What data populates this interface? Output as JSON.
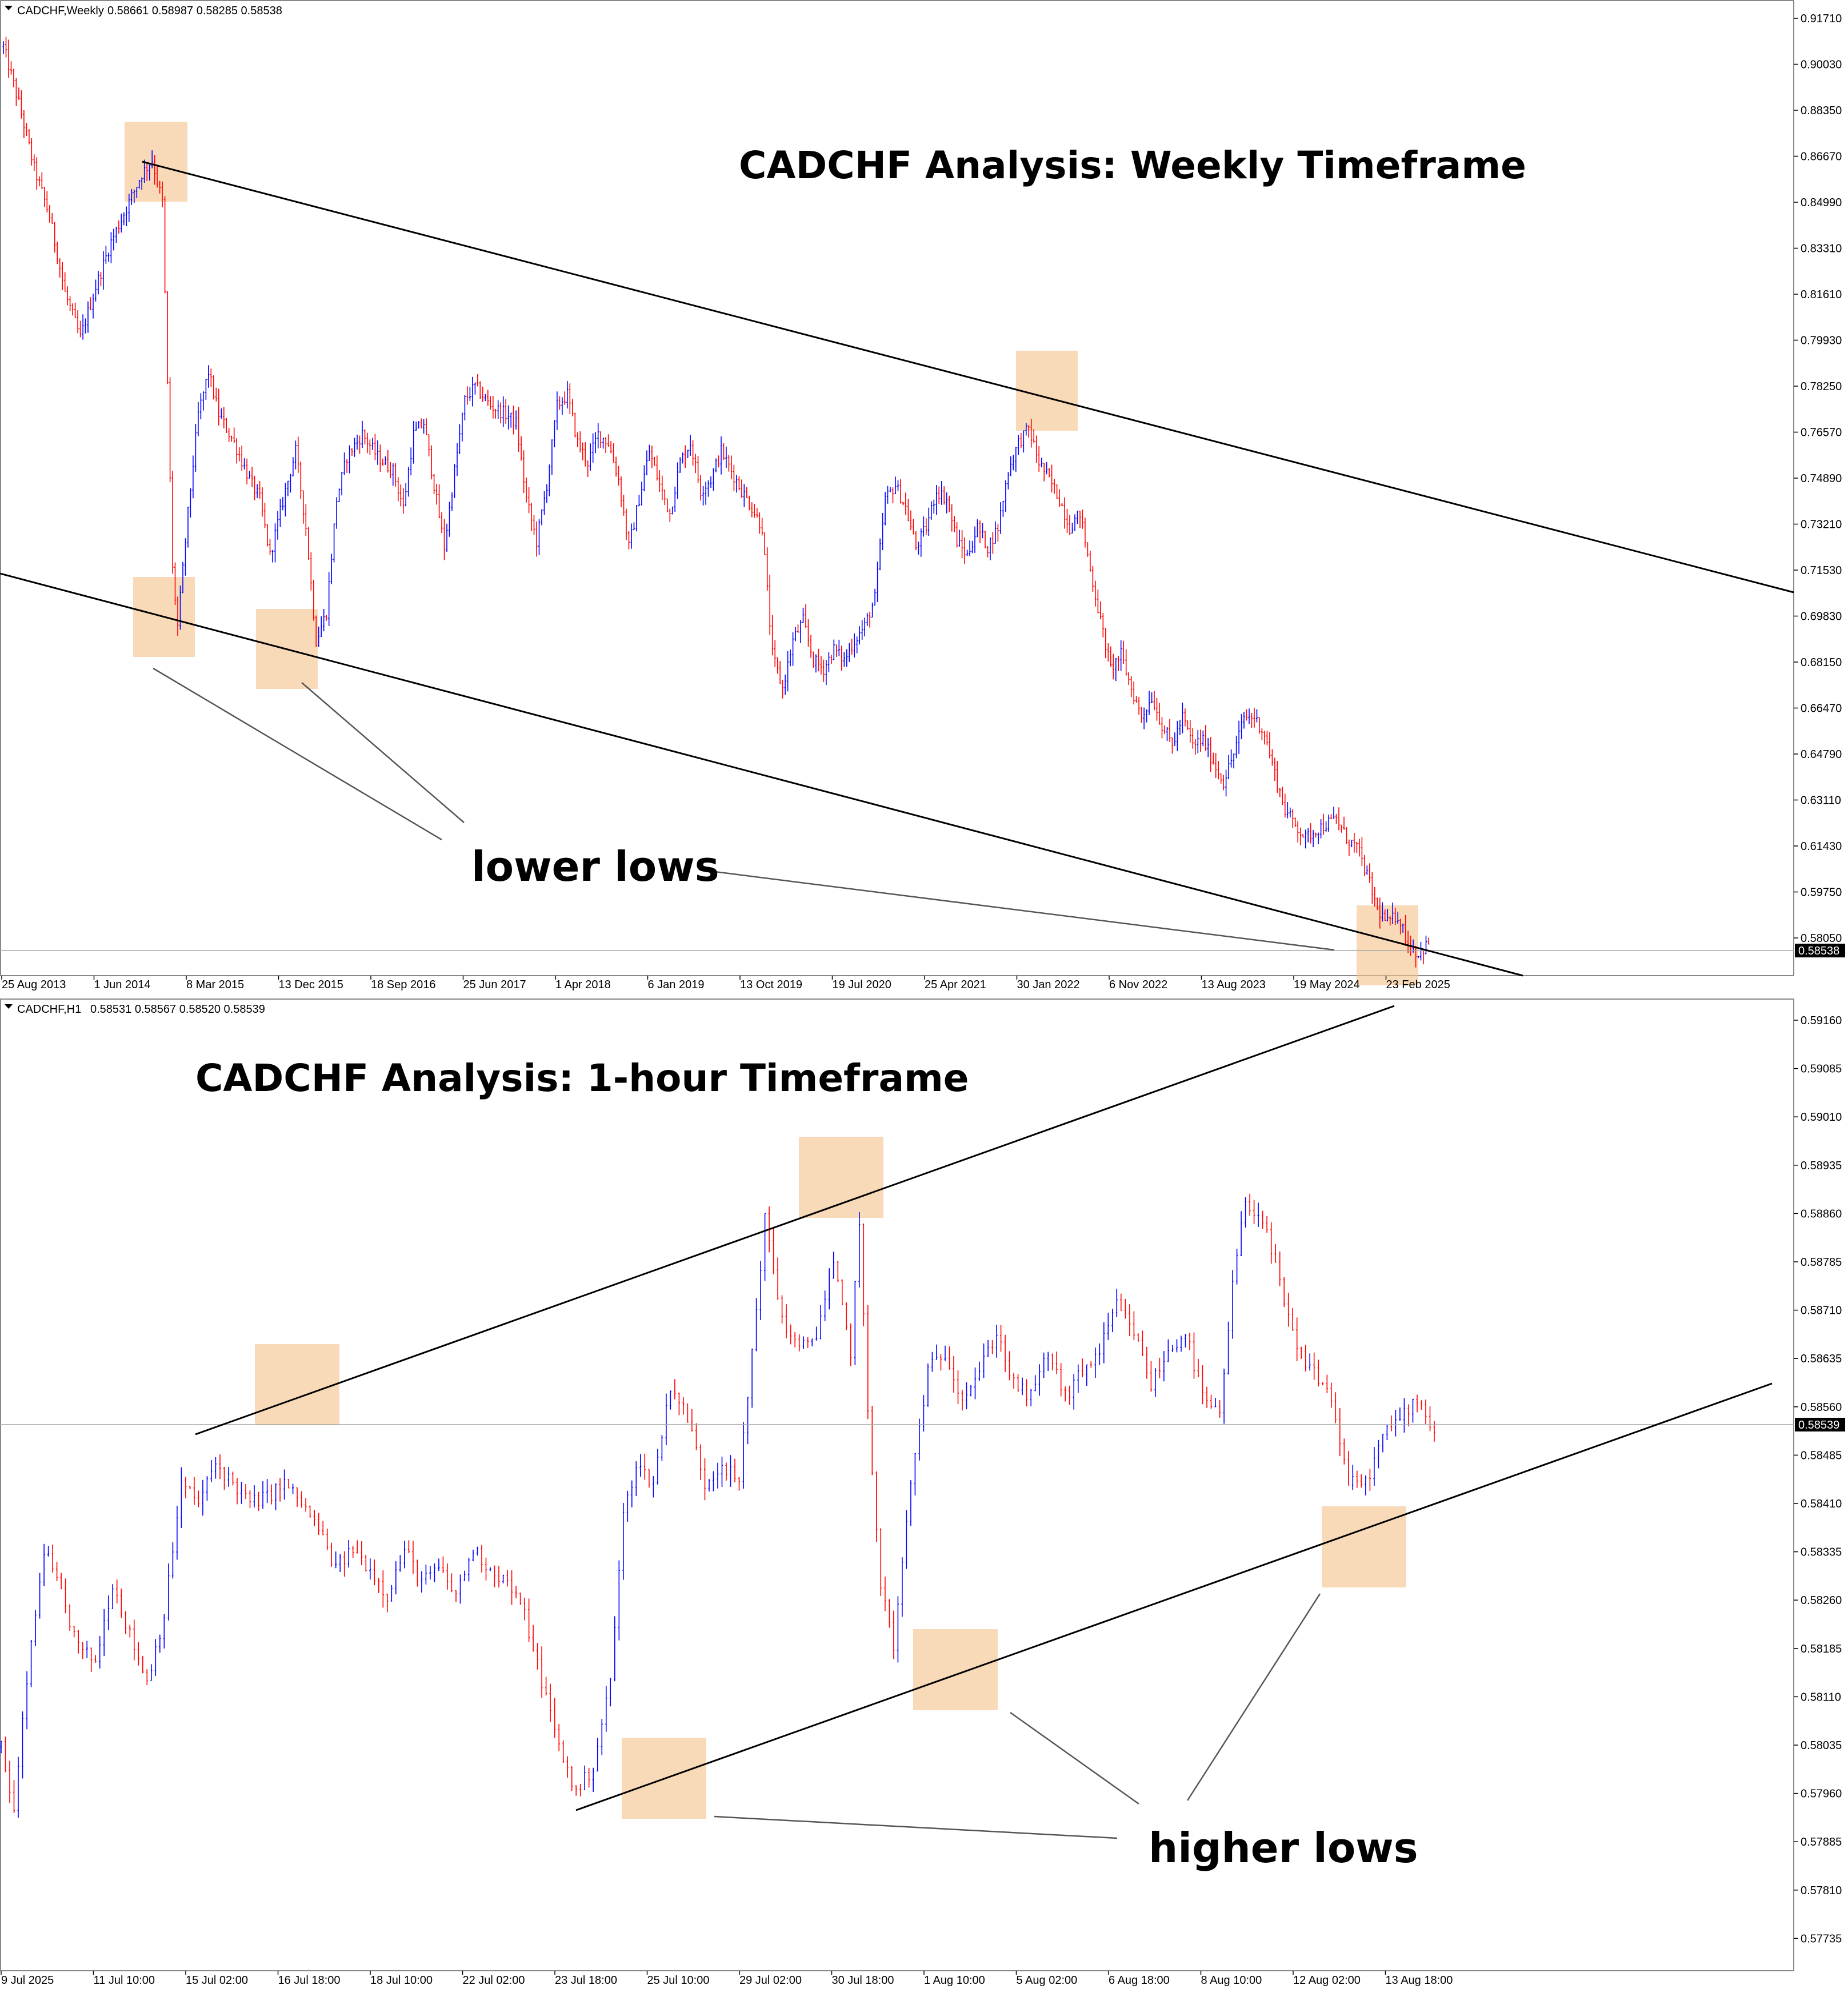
{
  "chart_data": [
    {
      "type": "candlestick",
      "symbol_header": "CADCHF,Weekly",
      "ohlc_header": "0.58661 0.58987 0.58285 0.58538",
      "title": "CADCHF Analysis: Weekly Timeframe",
      "y_ticks": [
        "0.91710",
        "0.90030",
        "0.88350",
        "0.86670",
        "0.84990",
        "0.83310",
        "0.81610",
        "0.79930",
        "0.78250",
        "0.76570",
        "0.74890",
        "0.73210",
        "0.71530",
        "0.69830",
        "0.68150",
        "0.66470",
        "0.64790",
        "0.63110",
        "0.61430",
        "0.59750",
        "0.58050"
      ],
      "ylim": [
        0.5765,
        0.9213
      ],
      "current_price": "0.58538",
      "current_price_value": 0.58538,
      "x_ticks": [
        "25 Aug 2013",
        "1 Jun 2014",
        "8 Mar 2015",
        "13 Dec 2015",
        "18 Sep 2016",
        "25 Jun 2017",
        "1 Apr 2018",
        "6 Jan 2019",
        "13 Oct 2019",
        "19 Jul 2020",
        "25 Apr 2021",
        "30 Jan 2022",
        "6 Nov 2022",
        "13 Aug 2023",
        "19 May 2024",
        "23 Feb 2025"
      ],
      "price_path": [
        [
          0,
          0.905
        ],
        [
          6,
          0.885
        ],
        [
          12,
          0.862
        ],
        [
          18,
          0.845
        ],
        [
          24,
          0.818
        ],
        [
          30,
          0.802
        ],
        [
          36,
          0.82
        ],
        [
          42,
          0.836
        ],
        [
          48,
          0.848
        ],
        [
          54,
          0.86
        ],
        [
          58,
          0.865
        ],
        [
          62,
          0.85
        ],
        [
          66,
          0.72
        ],
        [
          68,
          0.7
        ],
        [
          72,
          0.74
        ],
        [
          76,
          0.775
        ],
        [
          80,
          0.79
        ],
        [
          84,
          0.775
        ],
        [
          90,
          0.765
        ],
        [
          96,
          0.752
        ],
        [
          100,
          0.745
        ],
        [
          104,
          0.725
        ],
        [
          110,
          0.748
        ],
        [
          114,
          0.762
        ],
        [
          118,
          0.735
        ],
        [
          122,
          0.695
        ],
        [
          126,
          0.705
        ],
        [
          130,
          0.745
        ],
        [
          134,
          0.76
        ],
        [
          140,
          0.768
        ],
        [
          146,
          0.76
        ],
        [
          152,
          0.755
        ],
        [
          156,
          0.742
        ],
        [
          160,
          0.768
        ],
        [
          164,
          0.772
        ],
        [
          168,
          0.75
        ],
        [
          172,
          0.728
        ],
        [
          176,
          0.755
        ],
        [
          180,
          0.78
        ],
        [
          184,
          0.785
        ],
        [
          190,
          0.778
        ],
        [
          196,
          0.775
        ],
        [
          200,
          0.772
        ],
        [
          204,
          0.745
        ],
        [
          208,
          0.73
        ],
        [
          212,
          0.75
        ],
        [
          216,
          0.778
        ],
        [
          220,
          0.782
        ],
        [
          224,
          0.765
        ],
        [
          228,
          0.758
        ],
        [
          232,
          0.768
        ],
        [
          236,
          0.765
        ],
        [
          240,
          0.752
        ],
        [
          244,
          0.728
        ],
        [
          248,
          0.745
        ],
        [
          252,
          0.762
        ],
        [
          256,
          0.75
        ],
        [
          260,
          0.74
        ],
        [
          264,
          0.758
        ],
        [
          268,
          0.765
        ],
        [
          272,
          0.748
        ],
        [
          276,
          0.752
        ],
        [
          280,
          0.762
        ],
        [
          284,
          0.755
        ],
        [
          288,
          0.748
        ],
        [
          292,
          0.742
        ],
        [
          296,
          0.735
        ],
        [
          300,
          0.69
        ],
        [
          304,
          0.678
        ],
        [
          308,
          0.695
        ],
        [
          312,
          0.702
        ],
        [
          316,
          0.688
        ],
        [
          320,
          0.685
        ],
        [
          324,
          0.692
        ],
        [
          328,
          0.688
        ],
        [
          332,
          0.695
        ],
        [
          336,
          0.7
        ],
        [
          340,
          0.71
        ],
        [
          344,
          0.745
        ],
        [
          348,
          0.75
        ],
        [
          352,
          0.742
        ],
        [
          356,
          0.728
        ],
        [
          360,
          0.735
        ],
        [
          364,
          0.748
        ],
        [
          368,
          0.745
        ],
        [
          372,
          0.73
        ],
        [
          376,
          0.725
        ],
        [
          380,
          0.735
        ],
        [
          384,
          0.728
        ],
        [
          388,
          0.735
        ],
        [
          392,
          0.755
        ],
        [
          396,
          0.765
        ],
        [
          400,
          0.77
        ],
        [
          404,
          0.758
        ],
        [
          408,
          0.752
        ],
        [
          412,
          0.745
        ],
        [
          416,
          0.735
        ],
        [
          420,
          0.74
        ],
        [
          424,
          0.72
        ],
        [
          428,
          0.702
        ],
        [
          432,
          0.685
        ],
        [
          436,
          0.69
        ],
        [
          440,
          0.678
        ],
        [
          444,
          0.668
        ],
        [
          448,
          0.675
        ],
        [
          452,
          0.665
        ],
        [
          456,
          0.658
        ],
        [
          460,
          0.668
        ],
        [
          464,
          0.658
        ],
        [
          468,
          0.66
        ],
        [
          472,
          0.652
        ],
        [
          476,
          0.645
        ],
        [
          480,
          0.655
        ],
        [
          484,
          0.668
        ],
        [
          488,
          0.668
        ],
        [
          492,
          0.662
        ],
        [
          496,
          0.648
        ],
        [
          500,
          0.635
        ],
        [
          504,
          0.63
        ],
        [
          508,
          0.625
        ],
        [
          512,
          0.628
        ],
        [
          516,
          0.63
        ],
        [
          520,
          0.632
        ],
        [
          524,
          0.625
        ],
        [
          528,
          0.622
        ],
        [
          532,
          0.612
        ],
        [
          536,
          0.6
        ],
        [
          540,
          0.595
        ],
        [
          544,
          0.598
        ],
        [
          548,
          0.588
        ],
        [
          552,
          0.584
        ],
        [
          556,
          0.588
        ]
      ],
      "annotations": [
        "lower lows"
      ]
    },
    {
      "type": "candlestick",
      "symbol_header": "CADCHF,H1",
      "ohlc_header": "0.58531 0.58567 0.58520 0.58539",
      "title": "CADCHF Analysis: 1-hour Timeframe",
      "y_ticks": [
        "0.59160",
        "0.59085",
        "0.59010",
        "0.58935",
        "0.58860",
        "0.58785",
        "0.58710",
        "0.58635",
        "0.58560",
        "0.58485",
        "0.58410",
        "0.58335",
        "0.58260",
        "0.58185",
        "0.58110",
        "0.58035",
        "0.57960",
        "0.57885",
        "0.57810",
        "0.57735"
      ],
      "ylim": [
        0.5771,
        0.59185
      ],
      "current_price": "0.58539",
      "current_price_value": 0.58539,
      "x_ticks": [
        "9 Jul 2025",
        "11 Jul 10:00",
        "15 Jul 02:00",
        "16 Jul 18:00",
        "18 Jul 10:00",
        "22 Jul 02:00",
        "23 Jul 18:00",
        "25 Jul 10:00",
        "29 Jul 02:00",
        "30 Jul 18:00",
        "1 Aug 10:00",
        "5 Aug 02:00",
        "6 Aug 18:00",
        "8 Aug 10:00",
        "12 Aug 02:00",
        "13 Aug 18:00"
      ],
      "price_path": [
        [
          0,
          0.5805
        ],
        [
          3,
          0.5795
        ],
        [
          6,
          0.5815
        ],
        [
          10,
          0.5835
        ],
        [
          14,
          0.5828
        ],
        [
          18,
          0.582
        ],
        [
          22,
          0.5818
        ],
        [
          26,
          0.583
        ],
        [
          30,
          0.5822
        ],
        [
          34,
          0.5815
        ],
        [
          38,
          0.5825
        ],
        [
          42,
          0.5845
        ],
        [
          46,
          0.5842
        ],
        [
          50,
          0.5848
        ],
        [
          54,
          0.5845
        ],
        [
          58,
          0.5842
        ],
        [
          62,
          0.5843
        ],
        [
          66,
          0.5845
        ],
        [
          70,
          0.5842
        ],
        [
          74,
          0.5838
        ],
        [
          78,
          0.5832
        ],
        [
          82,
          0.5835
        ],
        [
          86,
          0.5832
        ],
        [
          90,
          0.5828
        ],
        [
          94,
          0.5835
        ],
        [
          98,
          0.583
        ],
        [
          102,
          0.5832
        ],
        [
          106,
          0.5828
        ],
        [
          110,
          0.5835
        ],
        [
          114,
          0.5832
        ],
        [
          118,
          0.583
        ],
        [
          122,
          0.5825
        ],
        [
          126,
          0.5815
        ],
        [
          130,
          0.5805
        ],
        [
          134,
          0.5798
        ],
        [
          138,
          0.5802
        ],
        [
          142,
          0.5815
        ],
        [
          145,
          0.584
        ],
        [
          148,
          0.5848
        ],
        [
          152,
          0.5845
        ],
        [
          156,
          0.586
        ],
        [
          160,
          0.5855
        ],
        [
          164,
          0.5845
        ],
        [
          168,
          0.5848
        ],
        [
          172,
          0.5845
        ],
        [
          175,
          0.5865
        ],
        [
          178,
          0.5885
        ],
        [
          182,
          0.587
        ],
        [
          186,
          0.5865
        ],
        [
          190,
          0.5868
        ],
        [
          194,
          0.5878
        ],
        [
          198,
          0.5865
        ],
        [
          200,
          0.5885
        ],
        [
          202,
          0.5855
        ],
        [
          205,
          0.583
        ],
        [
          208,
          0.582
        ],
        [
          212,
          0.5845
        ],
        [
          216,
          0.5862
        ],
        [
          220,
          0.5865
        ],
        [
          224,
          0.5858
        ],
        [
          228,
          0.5862
        ],
        [
          232,
          0.5868
        ],
        [
          236,
          0.586
        ],
        [
          240,
          0.5858
        ],
        [
          244,
          0.5865
        ],
        [
          248,
          0.5858
        ],
        [
          252,
          0.5862
        ],
        [
          256,
          0.5865
        ],
        [
          260,
          0.5872
        ],
        [
          264,
          0.5868
        ],
        [
          268,
          0.586
        ],
        [
          272,
          0.5865
        ],
        [
          276,
          0.5868
        ],
        [
          280,
          0.5858
        ],
        [
          284,
          0.5855
        ],
        [
          287,
          0.5875
        ],
        [
          290,
          0.5888
        ],
        [
          294,
          0.5885
        ],
        [
          298,
          0.5875
        ],
        [
          302,
          0.5865
        ],
        [
          306,
          0.5862
        ],
        [
          310,
          0.5858
        ],
        [
          314,
          0.5845
        ],
        [
          318,
          0.5845
        ],
        [
          322,
          0.5852
        ],
        [
          326,
          0.5855
        ],
        [
          330,
          0.5858
        ],
        [
          334,
          0.5853
        ]
      ],
      "annotations": [
        "higher lows"
      ]
    }
  ]
}
